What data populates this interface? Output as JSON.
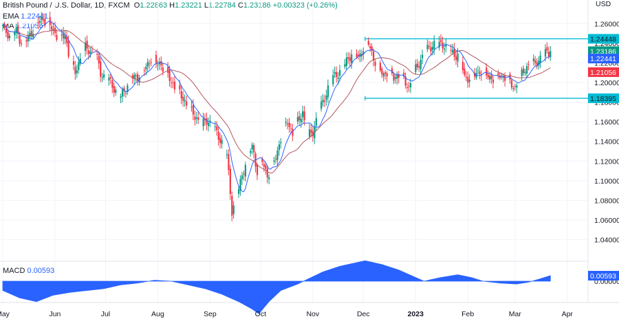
{
  "legend": {
    "symbol": "British Pound / U.S. Dollar, 1D, FXCM",
    "open_label": "O",
    "open": "1.22863",
    "high_label": "H",
    "high": "1.23221",
    "low_label": "L",
    "low": "1.22784",
    "close_label": "C",
    "close": "1.23186",
    "change": "+0.00323 (+0.26%)",
    "ema_label": "EMA",
    "ema_value": "1.22441",
    "ma_label": "MA",
    "ma_value": "1.21056"
  },
  "macd_legend": {
    "label": "MACD",
    "value": "0.00593"
  },
  "currency": "USD",
  "colors": {
    "up": "#089981",
    "down": "#f23645",
    "ema": "#2962ff",
    "ma": "#b2575f",
    "range": "#00bcd4",
    "macd": "#2962ff",
    "grid": "#f0f3fa",
    "text": "#131722"
  },
  "chart_data": {
    "type": "candlestick",
    "instrument": "British Pound / U.S. Dollar",
    "timeframe": "1D",
    "x_labels": [
      {
        "label": "May",
        "day": 0
      },
      {
        "label": "Jun",
        "day": 31
      },
      {
        "label": "Jul",
        "day": 61
      },
      {
        "label": "Aug",
        "day": 92
      },
      {
        "label": "Sep",
        "day": 123
      },
      {
        "label": "Oct",
        "day": 153
      },
      {
        "label": "Nov",
        "day": 184
      },
      {
        "label": "Dec",
        "day": 214
      },
      {
        "label": "2023",
        "day": 245,
        "bold": true
      },
      {
        "label": "Feb",
        "day": 276
      },
      {
        "label": "Mar",
        "day": 304
      },
      {
        "label": "Apr",
        "day": 335
      }
    ],
    "price_axis": {
      "min": 1.025,
      "max": 1.27,
      "ticks": [
        "1.26000",
        "1.24000",
        "1.22000",
        "1.20000",
        "1.18000",
        "1.16000",
        "1.14000",
        "1.12000",
        "1.10000",
        "1.08000",
        "1.06000",
        "1.04000"
      ]
    },
    "closes": [
      [
        0,
        1.256
      ],
      [
        4,
        1.248
      ],
      [
        8,
        1.252
      ],
      [
        12,
        1.238
      ],
      [
        16,
        1.248
      ],
      [
        20,
        1.26
      ],
      [
        24,
        1.265
      ],
      [
        28,
        1.258
      ],
      [
        31,
        1.25
      ],
      [
        34,
        1.245
      ],
      [
        37,
        1.248
      ],
      [
        40,
        1.22
      ],
      [
        43,
        1.21
      ],
      [
        46,
        1.225
      ],
      [
        49,
        1.235
      ],
      [
        52,
        1.232
      ],
      [
        55,
        1.23
      ],
      [
        58,
        1.21
      ],
      [
        61,
        1.205
      ],
      [
        64,
        1.2
      ],
      [
        67,
        1.192
      ],
      [
        70,
        1.185
      ],
      [
        73,
        1.195
      ],
      [
        76,
        1.205
      ],
      [
        79,
        1.205
      ],
      [
        82,
        1.21
      ],
      [
        85,
        1.215
      ],
      [
        88,
        1.225
      ],
      [
        91,
        1.22
      ],
      [
        94,
        1.218
      ],
      [
        97,
        1.212
      ],
      [
        100,
        1.2
      ],
      [
        103,
        1.195
      ],
      [
        106,
        1.186
      ],
      [
        109,
        1.178
      ],
      [
        112,
        1.17
      ],
      [
        115,
        1.164
      ],
      [
        118,
        1.156
      ],
      [
        121,
        1.162
      ],
      [
        124,
        1.158
      ],
      [
        127,
        1.148
      ],
      [
        130,
        1.14
      ],
      [
        133,
        1.125
      ],
      [
        136,
        1.07
      ],
      [
        139,
        1.085
      ],
      [
        142,
        1.105
      ],
      [
        145,
        1.125
      ],
      [
        148,
        1.135
      ],
      [
        151,
        1.11
      ],
      [
        154,
        1.12
      ],
      [
        157,
        1.105
      ],
      [
        160,
        1.115
      ],
      [
        163,
        1.13
      ],
      [
        166,
        1.15
      ],
      [
        169,
        1.16
      ],
      [
        172,
        1.148
      ],
      [
        175,
        1.16
      ],
      [
        178,
        1.17
      ],
      [
        181,
        1.145
      ],
      [
        184,
        1.15
      ],
      [
        187,
        1.168
      ],
      [
        190,
        1.18
      ],
      [
        193,
        1.195
      ],
      [
        196,
        1.205
      ],
      [
        199,
        1.21
      ],
      [
        202,
        1.215
      ],
      [
        205,
        1.225
      ],
      [
        208,
        1.232
      ],
      [
        211,
        1.225
      ],
      [
        214,
        1.235
      ],
      [
        217,
        1.24
      ],
      [
        220,
        1.225
      ],
      [
        223,
        1.215
      ],
      [
        226,
        1.208
      ],
      [
        229,
        1.212
      ],
      [
        232,
        1.205
      ],
      [
        235,
        1.208
      ],
      [
        238,
        1.202
      ],
      [
        241,
        1.195
      ],
      [
        244,
        1.21
      ],
      [
        247,
        1.22
      ],
      [
        250,
        1.23
      ],
      [
        253,
        1.235
      ],
      [
        256,
        1.24
      ],
      [
        259,
        1.238
      ],
      [
        262,
        1.239
      ],
      [
        265,
        1.233
      ],
      [
        268,
        1.228
      ],
      [
        271,
        1.23
      ],
      [
        274,
        1.205
      ],
      [
        277,
        1.205
      ],
      [
        280,
        1.208
      ],
      [
        283,
        1.212
      ],
      [
        286,
        1.21
      ],
      [
        289,
        1.205
      ],
      [
        292,
        1.204
      ],
      [
        295,
        1.208
      ],
      [
        298,
        1.205
      ],
      [
        301,
        1.2
      ],
      [
        304,
        1.195
      ],
      [
        307,
        1.205
      ],
      [
        310,
        1.215
      ],
      [
        313,
        1.218
      ],
      [
        316,
        1.22
      ],
      [
        319,
        1.225
      ],
      [
        322,
        1.23
      ],
      [
        325,
        1.2319
      ]
    ],
    "ema_value": 1.22441,
    "ma_value": 1.21056,
    "current_price": 1.23186,
    "range_lines": {
      "upper": 1.24448,
      "lower": 1.18395,
      "from_day": 215
    },
    "price_tags": [
      {
        "value": 1.24448,
        "label": "1.24448",
        "color": "#00bcd4",
        "text_dark": true
      },
      {
        "value": 1.23186,
        "label": "1.23186",
        "color": "#089981"
      },
      {
        "value": 1.22441,
        "label": "1.22441",
        "color": "#2962ff"
      },
      {
        "value": 1.21056,
        "label": "1.21056",
        "color": "#f23645"
      },
      {
        "value": 1.18395,
        "label": "1.18395",
        "color": "#00bcd4",
        "text_dark": true
      }
    ],
    "macd": {
      "value": 0.00593,
      "tag": "0.00593",
      "axis_label": "0.00000",
      "points": [
        [
          0,
          -0.01
        ],
        [
          10,
          -0.018
        ],
        [
          20,
          -0.022
        ],
        [
          30,
          -0.015
        ],
        [
          40,
          -0.012
        ],
        [
          50,
          -0.01
        ],
        [
          60,
          -0.008
        ],
        [
          70,
          -0.004
        ],
        [
          80,
          -0.002
        ],
        [
          90,
          0.001
        ],
        [
          100,
          0.0
        ],
        [
          110,
          -0.004
        ],
        [
          120,
          -0.008
        ],
        [
          130,
          -0.014
        ],
        [
          140,
          -0.022
        ],
        [
          148,
          -0.03
        ],
        [
          152,
          -0.035
        ],
        [
          158,
          -0.022
        ],
        [
          165,
          -0.01
        ],
        [
          175,
          -0.003
        ],
        [
          182,
          0.003
        ],
        [
          190,
          0.01
        ],
        [
          200,
          0.016
        ],
        [
          210,
          0.02
        ],
        [
          215,
          0.022
        ],
        [
          225,
          0.018
        ],
        [
          235,
          0.012
        ],
        [
          245,
          0.004
        ],
        [
          250,
          0.0
        ],
        [
          260,
          0.004
        ],
        [
          270,
          0.007
        ],
        [
          278,
          0.004
        ],
        [
          285,
          0.0
        ],
        [
          295,
          -0.002
        ],
        [
          305,
          -0.003
        ],
        [
          312,
          -0.001
        ],
        [
          318,
          0.002
        ],
        [
          325,
          0.006
        ]
      ]
    }
  }
}
